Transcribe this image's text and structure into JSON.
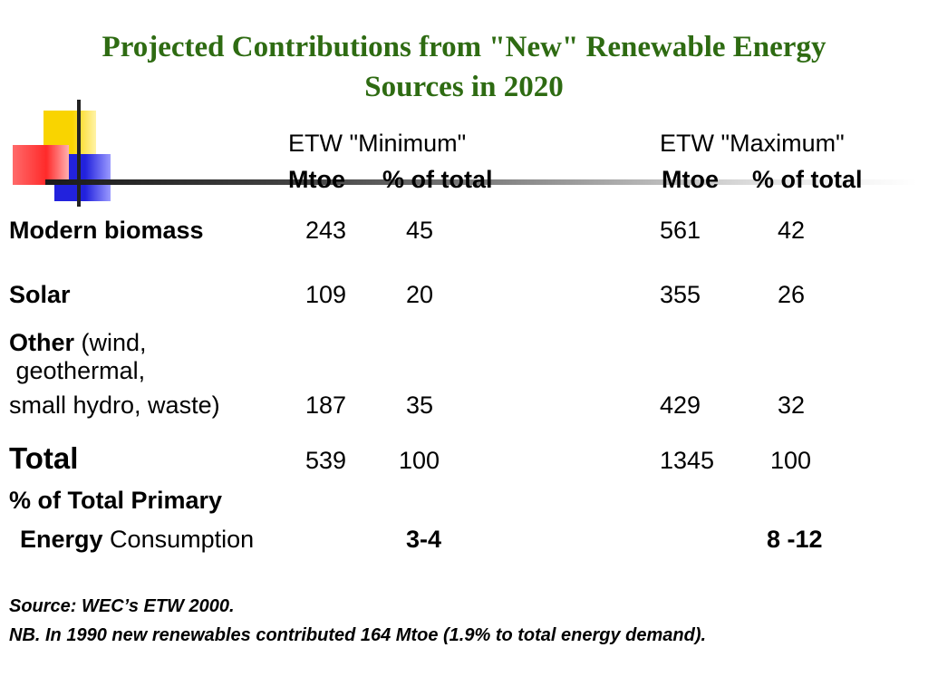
{
  "slide": {
    "title_line1": "Projected Contributions from \"New\" Renewable Energy",
    "title_line2": "Sources in 2020"
  },
  "colors": {
    "title": "#2e6b12"
  },
  "icons": [
    "logo-squares-icon"
  ],
  "table": {
    "groups": [
      {
        "name": "ETW \"Minimum\"",
        "col1": "Mtoe",
        "col2": "% of total"
      },
      {
        "name": "ETW \"Maximum\"",
        "col1": "Mtoe",
        "col2": "% of total"
      }
    ],
    "rows": [
      {
        "label_bold": "Modern biomass",
        "min_mtoe": "243",
        "min_pct": "45",
        "max_mtoe": "561",
        "max_pct": "42"
      },
      {
        "label_bold": "Solar",
        "min_mtoe": "109",
        "min_pct": "20",
        "max_mtoe": "355",
        "max_pct": "26"
      },
      {
        "label_bold": "Other",
        "label_rest": " (wind,",
        "label_line2": " geothermal,",
        "label_line3": "small hydro, waste)",
        "min_mtoe": "187",
        "min_pct": "35",
        "max_mtoe": "429",
        "max_pct": "32"
      },
      {
        "label_bold": "Total",
        "min_mtoe": "539",
        "min_pct": "100",
        "max_mtoe": "1345",
        "max_pct": "100"
      }
    ],
    "primary": {
      "label_line1": "% of Total Primary",
      "label_bold": "Energy",
      "label_rest": " Consumption",
      "min": "3-4",
      "max": "8 -12"
    }
  },
  "notes": {
    "source": "Source: WEC’s ETW 2000.",
    "nb": "NB. In 1990 new renewables contributed 164 Mtoe (1.9% to total energy demand)."
  }
}
